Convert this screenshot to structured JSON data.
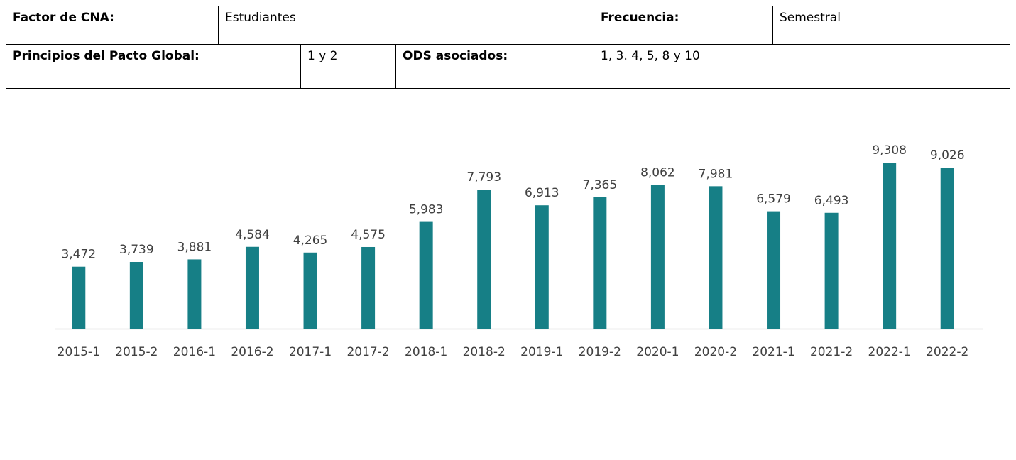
{
  "table": {
    "rows": [
      [
        "Factor de CNA:",
        "Estudiantes",
        "Frecuencia:",
        "Semestral"
      ],
      [
        "Principios del Pacto Global:",
        "1 y 2",
        "ODS asociados:",
        "1, 3. 4, 5, 8 y 10"
      ]
    ]
  },
  "chart_data": {
    "type": "bar",
    "color": "#167f86",
    "categories": [
      "2015-1",
      "2015-2",
      "2016-1",
      "2016-2",
      "2017-1",
      "2017-2",
      "2018-1",
      "2018-2",
      "2019-1",
      "2019-2",
      "2020-1",
      "2020-2",
      "2021-1",
      "2021-2",
      "2022-1",
      "2022-2"
    ],
    "values": [
      3472,
      3739,
      3881,
      4584,
      4265,
      4575,
      5983,
      7793,
      6913,
      7365,
      8062,
      7981,
      6579,
      6493,
      9308,
      9026
    ],
    "value_labels": [
      "3,472",
      "3,739",
      "3,881",
      "4,584",
      "4,265",
      "4,575",
      "5,983",
      "7,793",
      "6,913",
      "7,365",
      "8,062",
      "7,981",
      "6,579",
      "6,493",
      "9,308",
      "9,026"
    ]
  }
}
